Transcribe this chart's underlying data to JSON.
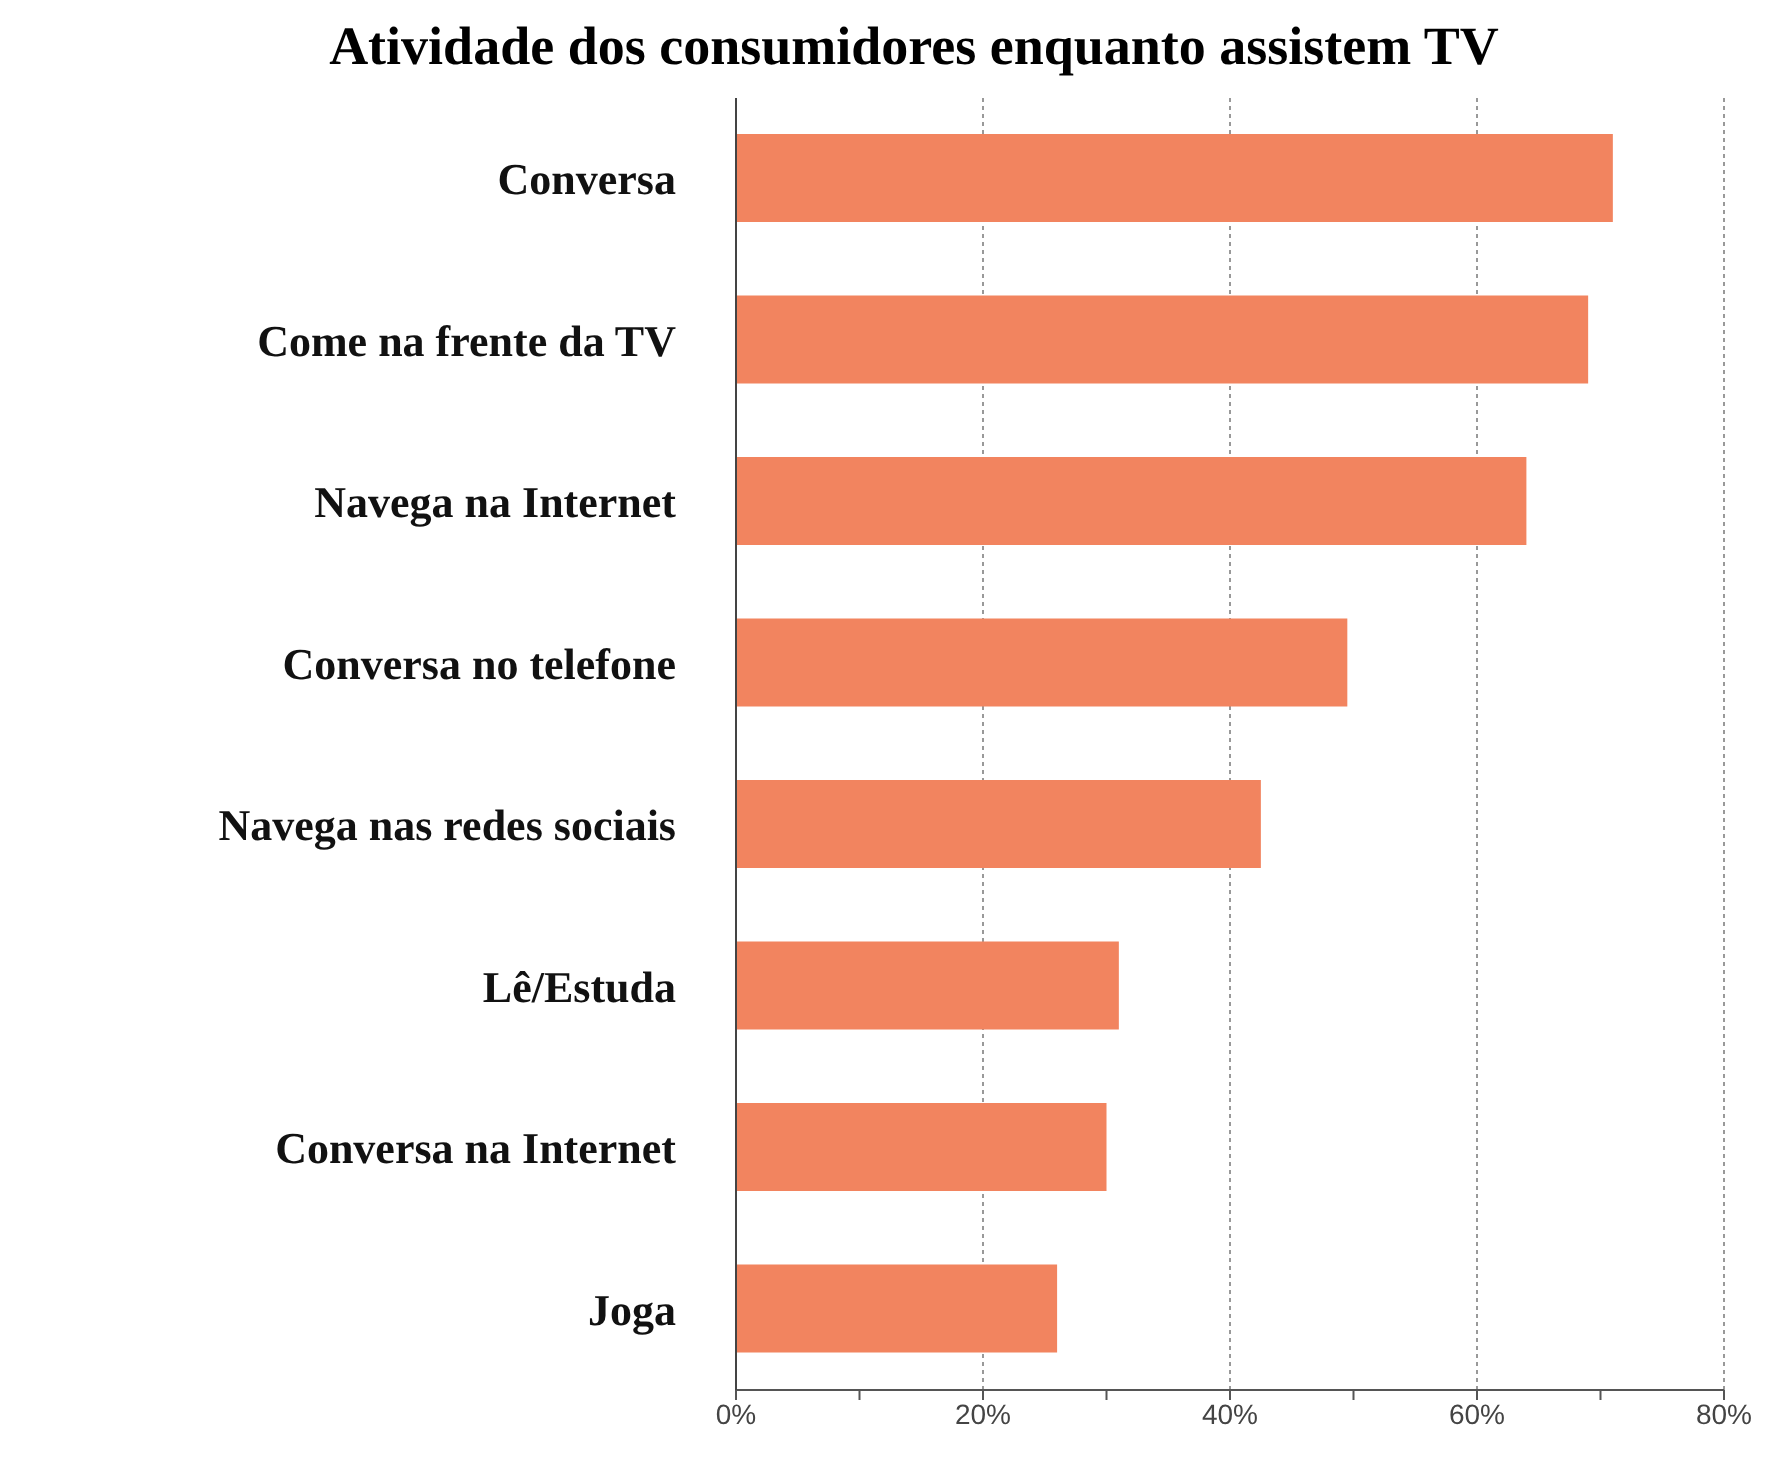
{
  "chart_data": {
    "type": "bar",
    "orientation": "horizontal",
    "title": "Atividade dos consumidores enquanto assistem TV",
    "categories": [
      "Conversa",
      "Come na frente da TV",
      "Navega na Internet",
      "Conversa no telefone",
      "Navega nas redes sociais",
      "Lê/Estuda",
      "Conversa na Internet",
      "Joga"
    ],
    "values": [
      71,
      69,
      64,
      49.5,
      42.5,
      31,
      30,
      26
    ],
    "color": "#f2845f",
    "xlim": [
      0,
      80
    ],
    "xticks": [
      {
        "value": 0,
        "label": "0%"
      },
      {
        "value": 10,
        "label": null
      },
      {
        "value": 20,
        "label": "20%"
      },
      {
        "value": 30,
        "label": null
      },
      {
        "value": 40,
        "label": "40%"
      },
      {
        "value": 50,
        "label": null
      },
      {
        "value": 60,
        "label": "60%"
      },
      {
        "value": 70,
        "label": null
      },
      {
        "value": 80,
        "label": "80%"
      }
    ],
    "grid": "x"
  }
}
